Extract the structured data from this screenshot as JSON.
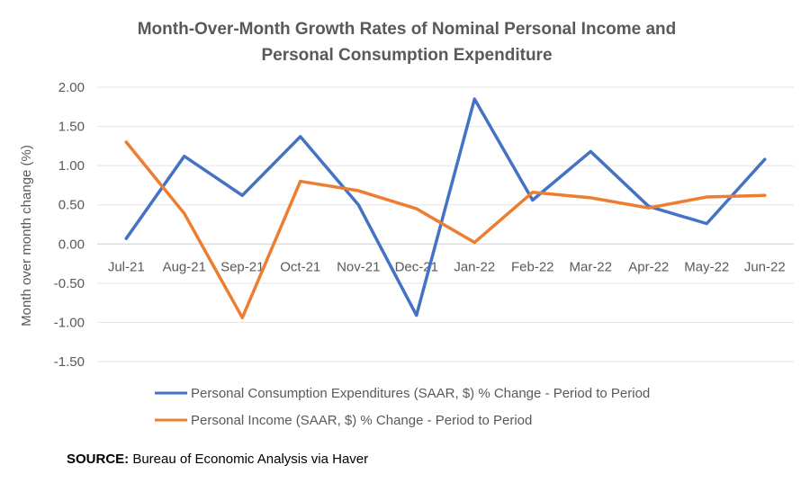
{
  "chart_data": {
    "type": "line",
    "title_lines": [
      "Month-Over-Month Growth Rates of Nominal Personal Income and",
      "Personal Consumption Expenditure"
    ],
    "ylabel": "Month over month change  (%)",
    "xlabel": "",
    "categories": [
      "Jul-21",
      "Aug-21",
      "Sep-21",
      "Oct-21",
      "Nov-21",
      "Dec-21",
      "Jan-22",
      "Feb-22",
      "Mar-22",
      "Apr-22",
      "May-22",
      "Jun-22"
    ],
    "ylim": [
      -1.5,
      2.0
    ],
    "yticks": [
      "2.00",
      "1.50",
      "1.00",
      "0.50",
      "0.00",
      "-0.50",
      "-1.00",
      "-1.50"
    ],
    "grid": true,
    "series": [
      {
        "name": "Personal Consumption Expenditures (SAAR, $) % Change - Period to Period",
        "color": "#4472C4",
        "values": [
          0.07,
          1.12,
          0.62,
          1.37,
          0.5,
          -0.91,
          1.85,
          0.56,
          1.18,
          0.48,
          0.26,
          1.08
        ]
      },
      {
        "name": "Personal Income (SAAR, $) % Change - Period to Period",
        "color": "#ED7D31",
        "values": [
          1.3,
          0.39,
          -0.94,
          0.8,
          0.68,
          0.45,
          0.02,
          0.66,
          0.59,
          0.46,
          0.6,
          0.62
        ]
      }
    ],
    "legend_position": "bottom"
  },
  "source": {
    "label": "SOURCE:",
    "text": " Bureau of Economic Analysis via Haver"
  }
}
